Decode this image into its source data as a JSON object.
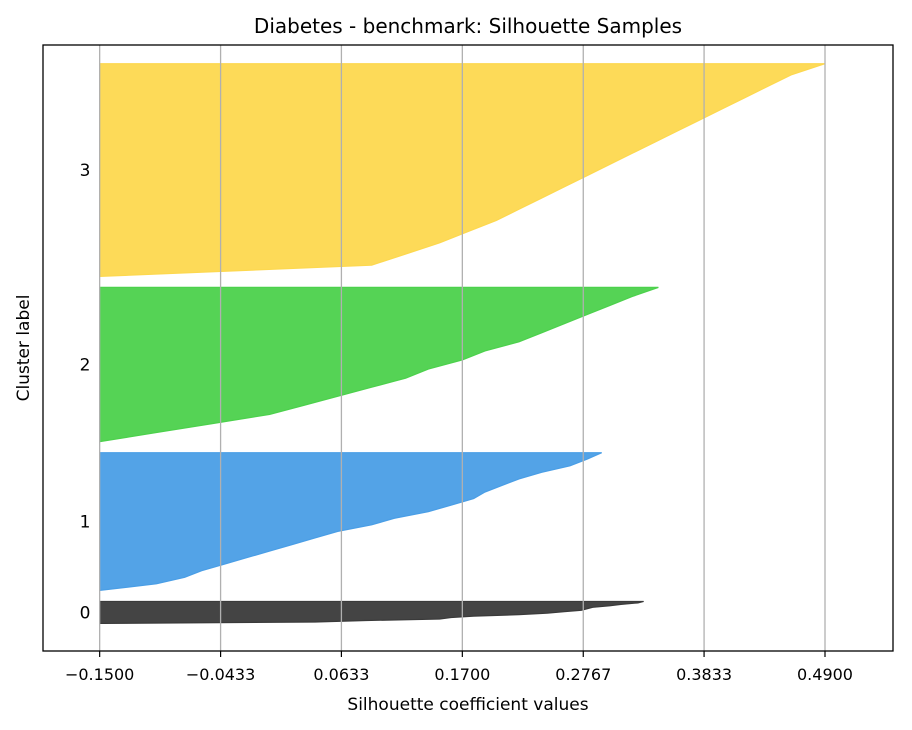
{
  "chart_data": {
    "type": "silhouette",
    "title": "Diabetes - benchmark: Silhouette Samples",
    "xlabel": "Silhouette coefficient values",
    "ylabel": "Cluster label",
    "xlim": [
      -0.2,
      0.55
    ],
    "xticks": [
      -0.15,
      -0.0433,
      0.0633,
      0.17,
      0.2767,
      0.3833,
      0.49
    ],
    "xtick_labels": [
      "−0.1500",
      "−0.0433",
      "0.0633",
      "0.1700",
      "0.2767",
      "0.3833",
      "0.4900"
    ],
    "grid": "vertical",
    "clusters": [
      {
        "label": "0",
        "color": "#3a3a3a",
        "sample_range": [
          0,
          20
        ],
        "silhouette_values": [
          -0.147,
          0.04,
          0.085,
          0.15,
          0.16,
          0.18,
          0.22,
          0.245,
          0.26,
          0.275,
          0.28,
          0.285,
          0.3,
          0.31,
          0.325,
          0.33
        ]
      },
      {
        "label": "1",
        "color": "#4a9ee6",
        "sample_range": [
          30,
          155
        ],
        "silhouette_values": [
          -0.15,
          -0.1,
          -0.075,
          -0.06,
          -0.04,
          -0.02,
          0.0,
          0.02,
          0.04,
          0.06,
          0.09,
          0.11,
          0.14,
          0.16,
          0.18,
          0.19,
          0.205,
          0.22,
          0.24,
          0.265,
          0.28,
          0.293
        ]
      },
      {
        "label": "2",
        "color": "#4cd14c",
        "sample_range": [
          165,
          305
        ],
        "silhouette_values": [
          -0.15,
          -0.1,
          -0.05,
          0.0,
          0.03,
          0.06,
          0.09,
          0.12,
          0.14,
          0.17,
          0.19,
          0.22,
          0.24,
          0.26,
          0.28,
          0.3,
          0.32,
          0.343
        ]
      },
      {
        "label": "3",
        "color": "#fdd84f",
        "sample_range": [
          315,
          508
        ],
        "silhouette_values": [
          -0.15,
          0.09,
          0.12,
          0.15,
          0.175,
          0.2,
          0.22,
          0.24,
          0.26,
          0.28,
          0.3,
          0.32,
          0.34,
          0.36,
          0.38,
          0.4,
          0.42,
          0.44,
          0.46,
          0.49
        ]
      }
    ],
    "ylim": [
      -25,
      525
    ]
  }
}
